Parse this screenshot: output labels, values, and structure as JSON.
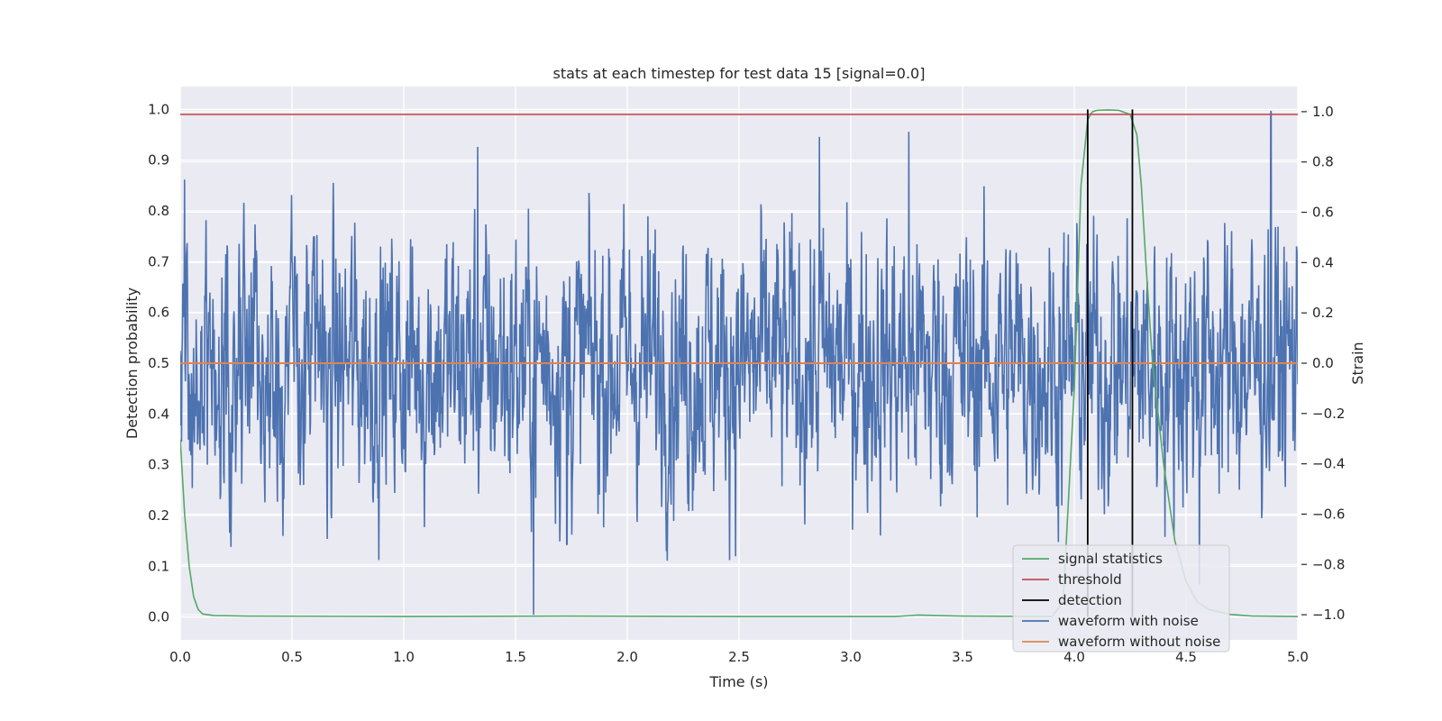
{
  "chart_data": {
    "type": "line",
    "title": "stats at each timestep for test data 15 [signal=0.0]",
    "xlabel": "Time (s)",
    "ylabel_left": "Detection probability",
    "ylabel_right": "Strain",
    "xlim": [
      0.0,
      5.0
    ],
    "ylim_left": [
      -0.045,
      1.045
    ],
    "ylim_right": [
      -1.1,
      1.1
    ],
    "x_ticks": [
      "0.0",
      "0.5",
      "1.0",
      "1.5",
      "2.0",
      "2.5",
      "3.0",
      "3.5",
      "4.0",
      "4.5",
      "5.0"
    ],
    "y_left_ticks": [
      "0.0",
      "0.1",
      "0.2",
      "0.3",
      "0.4",
      "0.5",
      "0.6",
      "0.7",
      "0.8",
      "0.9",
      "1.0"
    ],
    "y_right_ticks": [
      "1.0",
      "0.8",
      "0.6",
      "0.4",
      "0.2",
      "0.0",
      "−0.2",
      "−0.4",
      "−0.6",
      "−0.8",
      "−1.0"
    ],
    "grid": true,
    "legend_position": "lower-right",
    "legend": [
      {
        "label": "signal statistics",
        "color": "#55a868"
      },
      {
        "label": "threshold",
        "color": "#c44e52"
      },
      {
        "label": "detection",
        "color": "#000000"
      },
      {
        "label": "waveform with noise",
        "color": "#4c72b0"
      },
      {
        "label": "waveform without noise",
        "color": "#dd8452"
      }
    ],
    "series": [
      {
        "name": "signal statistics",
        "axis": "left",
        "color": "#55a868",
        "x": [
          0.0,
          0.02,
          0.04,
          0.06,
          0.08,
          0.1,
          0.15,
          0.3,
          1.0,
          1.7,
          2.5,
          3.2,
          3.3,
          3.5,
          3.9,
          3.95,
          4.0,
          4.03,
          4.06,
          4.08,
          4.1,
          4.15,
          4.2,
          4.25,
          4.28,
          4.3,
          4.32,
          4.35,
          4.4,
          4.45,
          4.5,
          4.55,
          4.6,
          4.7,
          4.8,
          5.0
        ],
        "y": [
          0.35,
          0.2,
          0.1,
          0.04,
          0.015,
          0.006,
          0.003,
          0.002,
          0.001,
          0.002,
          0.001,
          0.001,
          0.004,
          0.002,
          0.001,
          0.03,
          0.45,
          0.85,
          0.98,
          0.995,
          0.998,
          0.999,
          0.998,
          0.99,
          0.95,
          0.85,
          0.7,
          0.5,
          0.3,
          0.15,
          0.07,
          0.03,
          0.015,
          0.005,
          0.002,
          0.001
        ]
      },
      {
        "name": "threshold",
        "axis": "left",
        "color": "#c44e52",
        "x": [
          0.0,
          5.0
        ],
        "y": [
          0.99,
          0.99
        ]
      },
      {
        "name": "detection",
        "axis": "left",
        "type": "vlines",
        "color": "#000000",
        "x": [
          4.06,
          4.26
        ],
        "ymin": 0.0,
        "ymax": 1.0
      },
      {
        "name": "waveform with noise",
        "axis": "right",
        "color": "#4c72b0",
        "sample_rate_hz": 2048,
        "amplitude_envelope": 0.9,
        "extreme_peaks": [
          {
            "x": 0.02,
            "y": 0.73
          },
          {
            "x": 1.33,
            "y": 0.86
          },
          {
            "x": 1.58,
            "y": -1.0
          },
          {
            "x": 1.73,
            "y": -0.72
          },
          {
            "x": 2.86,
            "y": 0.9
          },
          {
            "x": 3.26,
            "y": 0.92
          },
          {
            "x": 4.56,
            "y": -0.88
          },
          {
            "x": 4.88,
            "y": 1.0
          }
        ]
      },
      {
        "name": "waveform without noise",
        "axis": "right",
        "color": "#dd8452",
        "x": [
          0.0,
          5.0
        ],
        "y": [
          0.0,
          0.0
        ]
      }
    ]
  }
}
